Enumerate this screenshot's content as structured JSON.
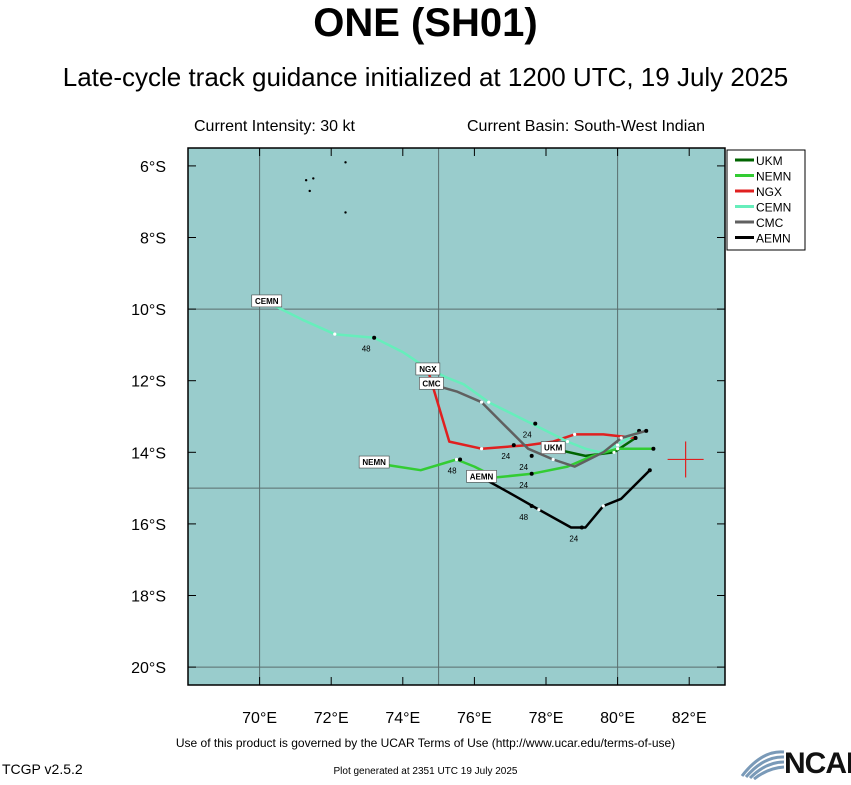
{
  "header": {
    "title": "ONE (SH01)",
    "subtitle": "Late-cycle track guidance initialized at 1200 UTC, 19 July 2025"
  },
  "info": {
    "intensity": "Current Intensity: 30 kt",
    "basin": "Current Basin: South-West Indian"
  },
  "footer": {
    "terms": "Use of this product is governed by the UCAR Terms of Use (http://www.ucar.edu/terms-of-use)",
    "generated": "Plot generated at 2351 UTC   19 July 2025",
    "version": "TCGP v2.5.2",
    "logo": "NCAR"
  },
  "map": {
    "lon_range": [
      68,
      83
    ],
    "lat_range": [
      -20.5,
      -5.5
    ],
    "lon_ticks": [
      70,
      72,
      74,
      76,
      78,
      80,
      82
    ],
    "lon_tick_labels": [
      "70°E",
      "72°E",
      "74°E",
      "76°E",
      "78°E",
      "80°E",
      "82°E"
    ],
    "lat_ticks": [
      -6,
      -8,
      -10,
      -12,
      -14,
      -16,
      -18,
      -20
    ],
    "lat_tick_labels": [
      "6°S",
      "8°S",
      "10°S",
      "12°S",
      "14°S",
      "16°S",
      "18°S",
      "20°S"
    ],
    "grid_lons": [
      70,
      75,
      80
    ],
    "grid_lats": [
      -10,
      -15,
      -20
    ],
    "colors": {
      "ocean": "#99cccc",
      "grid": "#5a6e6e",
      "frame": "#000000",
      "current_position": "#e02020"
    },
    "current_position": {
      "lon": 81.9,
      "lat": -14.2
    },
    "legend_position": "top-right",
    "islands": [
      {
        "lon": 71.3,
        "lat": -6.4
      },
      {
        "lon": 71.4,
        "lat": -6.7
      },
      {
        "lon": 71.5,
        "lat": -6.35
      },
      {
        "lon": 72.4,
        "lat": -7.3
      },
      {
        "lon": 72.4,
        "lat": -5.9
      }
    ]
  },
  "chart_data": {
    "type": "line",
    "x_axis": "longitude (°E)",
    "y_axis": "latitude (°, negative = south)",
    "series": [
      {
        "name": "UKM",
        "color": "#006400",
        "points": [
          [
            78.2,
            -13.9
          ],
          [
            79.1,
            -14.1
          ],
          [
            79.9,
            -14.0
          ],
          [
            80.5,
            -13.6
          ]
        ],
        "end_label": "UKM",
        "dot_labels": []
      },
      {
        "name": "NEMN",
        "color": "#33cc33",
        "points": [
          [
            73.2,
            -14.3
          ],
          [
            74.5,
            -14.5
          ],
          [
            75.5,
            -14.2
          ],
          [
            76.0,
            -14.4
          ],
          [
            76.6,
            -14.7
          ],
          [
            77.6,
            -14.6
          ],
          [
            78.6,
            -14.4
          ],
          [
            79.3,
            -14.1
          ],
          [
            80.0,
            -13.9
          ],
          [
            81.0,
            -13.9
          ]
        ],
        "end_label": "NEMN",
        "dot_labels": [
          {
            "lon": 75.6,
            "lat": -14.2,
            "text": "48"
          },
          {
            "lon": 77.6,
            "lat": -14.6,
            "text": "24"
          }
        ]
      },
      {
        "name": "NGX",
        "color": "#e02020",
        "points": [
          [
            74.7,
            -11.7
          ],
          [
            75.3,
            -13.7
          ],
          [
            76.2,
            -13.9
          ],
          [
            77.5,
            -13.8
          ],
          [
            78.2,
            -13.7
          ],
          [
            78.8,
            -13.5
          ],
          [
            79.6,
            -13.5
          ],
          [
            80.5,
            -13.6
          ]
        ],
        "end_label": "NGX",
        "dot_labels": []
      },
      {
        "name": "CEMN",
        "color": "#66eebb",
        "points": [
          [
            70.2,
            -9.8
          ],
          [
            71.2,
            -10.3
          ],
          [
            72.1,
            -10.7
          ],
          [
            73.2,
            -10.8
          ],
          [
            74.0,
            -11.2
          ],
          [
            74.6,
            -11.6
          ],
          [
            75.2,
            -11.9
          ],
          [
            75.7,
            -12.1
          ],
          [
            76.4,
            -12.6
          ],
          [
            77.2,
            -13.0
          ],
          [
            78.0,
            -13.4
          ],
          [
            78.6,
            -13.7
          ],
          [
            79.1,
            -13.9
          ],
          [
            79.5,
            -14.0
          ],
          [
            80.0,
            -13.8
          ],
          [
            80.6,
            -13.4
          ]
        ],
        "end_label": "CEMN",
        "dot_labels": [
          {
            "lon": 73.2,
            "lat": -10.8,
            "text": "48"
          },
          {
            "lon": 77.7,
            "lat": -13.2,
            "text": "24"
          }
        ]
      },
      {
        "name": "CMC",
        "color": "#606060",
        "points": [
          [
            74.8,
            -12.1
          ],
          [
            75.5,
            -12.3
          ],
          [
            76.2,
            -12.6
          ],
          [
            76.8,
            -13.2
          ],
          [
            77.5,
            -13.9
          ],
          [
            78.2,
            -14.2
          ],
          [
            78.8,
            -14.4
          ],
          [
            79.6,
            -14.0
          ],
          [
            80.1,
            -13.6
          ],
          [
            80.8,
            -13.4
          ]
        ],
        "end_label": "CMC",
        "dot_labels": [
          {
            "lon": 77.1,
            "lat": -13.8,
            "text": "24"
          },
          {
            "lon": 77.6,
            "lat": -14.1,
            "text": "24"
          }
        ]
      },
      {
        "name": "AEMN",
        "color": "#000000",
        "points": [
          [
            76.2,
            -14.7
          ],
          [
            77.1,
            -15.2
          ],
          [
            77.8,
            -15.6
          ],
          [
            78.7,
            -16.1
          ],
          [
            79.1,
            -16.1
          ],
          [
            79.6,
            -15.5
          ],
          [
            80.1,
            -15.3
          ],
          [
            80.5,
            -14.9
          ],
          [
            80.9,
            -14.5
          ]
        ],
        "end_label": "AEMN",
        "dot_labels": [
          {
            "lon": 77.6,
            "lat": -15.5,
            "text": "48"
          },
          {
            "lon": 79.0,
            "lat": -16.1,
            "text": "24"
          }
        ]
      }
    ]
  }
}
